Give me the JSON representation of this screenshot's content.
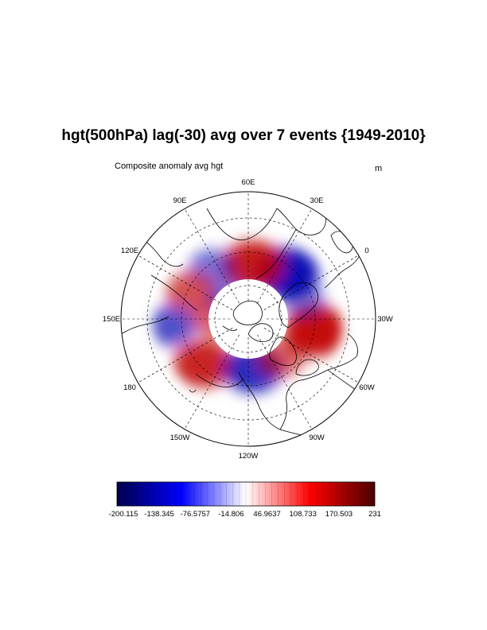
{
  "title": "hgt(500hPa) lag(-30) avg over 7 events {1949-2010}",
  "subtitle": "Composite anomaly avg hgt",
  "units": "m",
  "map": {
    "projection": "north-polar-stereographic",
    "longitude_labels": [
      {
        "label": "60E",
        "lon": 60
      },
      {
        "label": "30E",
        "lon": 30
      },
      {
        "label": "0",
        "lon": 0
      },
      {
        "label": "30W",
        "lon": -30
      },
      {
        "label": "60W",
        "lon": -60
      },
      {
        "label": "90W",
        "lon": -90
      },
      {
        "label": "120W",
        "lon": -120
      },
      {
        "label": "150W",
        "lon": -150
      },
      {
        "label": "180",
        "lon": 180
      },
      {
        "label": "150E",
        "lon": 150
      },
      {
        "label": "120E",
        "lon": 120
      },
      {
        "label": "90E",
        "lon": 90
      }
    ],
    "grid": true,
    "colors": {
      "negative": "#0000b0",
      "positive": "#c00000",
      "neutral": "#ffffff"
    },
    "anomaly_features": [
      {
        "sign": "negative",
        "lon": 20,
        "lat": 57,
        "strength": 1.0
      },
      {
        "sign": "positive",
        "lon": 55,
        "lat": 60,
        "strength": 0.9
      },
      {
        "sign": "negative",
        "lon": 95,
        "lat": 55,
        "strength": 0.35
      },
      {
        "sign": "positive",
        "lon": 125,
        "lat": 55,
        "strength": 0.55
      },
      {
        "sign": "negative",
        "lon": 155,
        "lat": 47,
        "strength": 0.55
      },
      {
        "sign": "positive",
        "lon": -165,
        "lat": 55,
        "strength": 0.85
      },
      {
        "sign": "negative",
        "lon": -115,
        "lat": 62,
        "strength": 0.8
      },
      {
        "sign": "positive",
        "lon": -80,
        "lat": 62,
        "strength": 0.45
      },
      {
        "sign": "positive",
        "lon": -40,
        "lat": 52,
        "strength": 1.0
      },
      {
        "sign": "negative",
        "lon": -10,
        "lat": 58,
        "strength": 0.3
      },
      {
        "sign": "positive",
        "lon": 150,
        "lat": 72,
        "strength": 0.45
      },
      {
        "sign": "negative",
        "lon": 100,
        "lat": 74,
        "strength": 0.3
      }
    ]
  },
  "colorbar": {
    "labels": [
      "-200.115",
      "-138.345",
      "-76.5757",
      "-14.806",
      "46.9637",
      "108.733",
      "170.503",
      "231"
    ],
    "min": -200.115,
    "max": 231,
    "colors": [
      "#00004c",
      "#0000ff",
      "#ffffff",
      "#ff0000",
      "#4c0000"
    ]
  }
}
